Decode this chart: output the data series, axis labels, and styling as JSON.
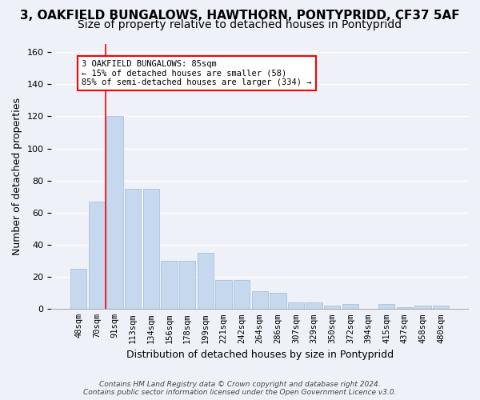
{
  "title": "3, OAKFIELD BUNGALOWS, HAWTHORN, PONTYPRIDD, CF37 5AF",
  "subtitle": "Size of property relative to detached houses in Pontypridd",
  "xlabel": "Distribution of detached houses by size in Pontypridd",
  "ylabel": "Number of detached properties",
  "bar_values": [
    25,
    67,
    120,
    75,
    75,
    30,
    30,
    35,
    18,
    18,
    11,
    10,
    4,
    4,
    2,
    3,
    0,
    3,
    1,
    2,
    2
  ],
  "bar_labels": [
    "48sqm",
    "70sqm",
    "91sqm",
    "113sqm",
    "134sqm",
    "156sqm",
    "178sqm",
    "199sqm",
    "221sqm",
    "242sqm",
    "264sqm",
    "286sqm",
    "307sqm",
    "329sqm",
    "350sqm",
    "372sqm",
    "394sqm",
    "415sqm",
    "437sqm",
    "458sqm",
    "480sqm"
  ],
  "ylim": [
    0,
    165
  ],
  "yticks": [
    0,
    20,
    40,
    60,
    80,
    100,
    120,
    140,
    160
  ],
  "bar_color": "#c5d8ed",
  "bar_edge_color": "#a0bcd8",
  "annotation_box_text": "3 OAKFIELD BUNGALOWS: 85sqm\n← 15% of detached houses are smaller (58)\n85% of semi-detached houses are larger (334) →",
  "footer_text": "Contains HM Land Registry data © Crown copyright and database right 2024.\nContains public sector information licensed under the Open Government Licence v3.0.",
  "background_color": "#eef2f8",
  "grid_color": "#ffffff",
  "title_fontsize": 11,
  "subtitle_fontsize": 10,
  "tick_fontsize": 7.5,
  "ylabel_fontsize": 9,
  "xlabel_fontsize": 9,
  "red_line_x": 1.5
}
